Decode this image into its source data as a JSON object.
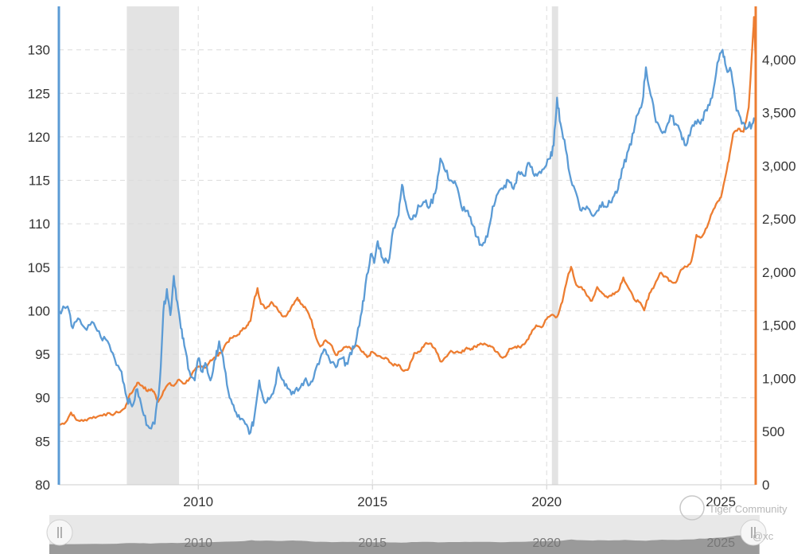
{
  "chart_data": {
    "type": "line",
    "title": "",
    "xlabel": "",
    "x_range": [
      2006.0,
      2026.0
    ],
    "x_ticks": [
      "2010",
      "2015",
      "2020",
      "2025"
    ],
    "left_axis": {
      "label": "",
      "range": [
        80,
        135
      ],
      "ticks": [
        "80",
        "85",
        "90",
        "95",
        "100",
        "105",
        "110",
        "115",
        "120",
        "125",
        "130"
      ],
      "color": "#5b9bd5"
    },
    "right_axis": {
      "label": "",
      "range": [
        0,
        4500
      ],
      "ticks": [
        "0",
        "500",
        "1,000",
        "1,500",
        "2,000",
        "2,500",
        "3,000",
        "3,500",
        "4,000"
      ],
      "color": "#ed7d31"
    },
    "shaded_periods": [
      {
        "start": 2007.95,
        "end": 2009.45
      },
      {
        "start": 2020.15,
        "end": 2020.33
      }
    ],
    "grid": true,
    "legend": "none",
    "series": [
      {
        "axis": "left",
        "color": "#5b9bd5",
        "points": [
          [
            2006.0,
            100.0
          ],
          [
            2006.25,
            100.5
          ],
          [
            2006.4,
            98.0
          ],
          [
            2006.6,
            99.0
          ],
          [
            2006.8,
            97.8
          ],
          [
            2007.0,
            98.6
          ],
          [
            2007.2,
            97.0
          ],
          [
            2007.4,
            96.5
          ],
          [
            2007.6,
            94.5
          ],
          [
            2007.8,
            93.0
          ],
          [
            2007.95,
            90.0
          ],
          [
            2008.1,
            89.0
          ],
          [
            2008.25,
            91.0
          ],
          [
            2008.4,
            88.5
          ],
          [
            2008.55,
            86.8
          ],
          [
            2008.75,
            87.0
          ],
          [
            2008.9,
            92.0
          ],
          [
            2009.0,
            100.0
          ],
          [
            2009.1,
            102.5
          ],
          [
            2009.2,
            99.5
          ],
          [
            2009.3,
            104.0
          ],
          [
            2009.4,
            101.0
          ],
          [
            2009.5,
            98.0
          ],
          [
            2009.6,
            96.0
          ],
          [
            2009.75,
            93.0
          ],
          [
            2009.9,
            92.0
          ],
          [
            2010.0,
            94.5
          ],
          [
            2010.1,
            93.0
          ],
          [
            2010.2,
            94.0
          ],
          [
            2010.35,
            92.0
          ],
          [
            2010.5,
            94.5
          ],
          [
            2010.6,
            96.5
          ],
          [
            2010.75,
            93.5
          ],
          [
            2010.9,
            90.0
          ],
          [
            2011.05,
            88.5
          ],
          [
            2011.2,
            87.5
          ],
          [
            2011.35,
            87.0
          ],
          [
            2011.5,
            86.0
          ],
          [
            2011.6,
            87.5
          ],
          [
            2011.75,
            92.0
          ],
          [
            2011.9,
            89.5
          ],
          [
            2012.0,
            90.0
          ],
          [
            2012.15,
            90.5
          ],
          [
            2012.3,
            93.5
          ],
          [
            2012.45,
            92.0
          ],
          [
            2012.6,
            91.0
          ],
          [
            2012.75,
            90.5
          ],
          [
            2012.9,
            91.0
          ],
          [
            2013.05,
            92.0
          ],
          [
            2013.2,
            91.5
          ],
          [
            2013.35,
            93.0
          ],
          [
            2013.5,
            94.5
          ],
          [
            2013.65,
            95.5
          ],
          [
            2013.8,
            94.0
          ],
          [
            2013.95,
            93.5
          ],
          [
            2014.1,
            94.5
          ],
          [
            2014.25,
            94.0
          ],
          [
            2014.4,
            95.0
          ],
          [
            2014.55,
            97.0
          ],
          [
            2014.7,
            100.0
          ],
          [
            2014.8,
            103.0
          ],
          [
            2014.95,
            106.5
          ],
          [
            2015.05,
            105.5
          ],
          [
            2015.15,
            108.0
          ],
          [
            2015.3,
            106.0
          ],
          [
            2015.45,
            105.5
          ],
          [
            2015.6,
            109.5
          ],
          [
            2015.75,
            111.0
          ],
          [
            2015.85,
            114.5
          ],
          [
            2015.95,
            112.5
          ],
          [
            2016.1,
            110.5
          ],
          [
            2016.2,
            111.0
          ],
          [
            2016.35,
            112.0
          ],
          [
            2016.5,
            112.5
          ],
          [
            2016.65,
            112.0
          ],
          [
            2016.8,
            113.5
          ],
          [
            2016.95,
            117.5
          ],
          [
            2017.1,
            116.0
          ],
          [
            2017.25,
            115.0
          ],
          [
            2017.4,
            114.5
          ],
          [
            2017.55,
            112.0
          ],
          [
            2017.7,
            111.5
          ],
          [
            2017.85,
            110.0
          ],
          [
            2018.0,
            108.5
          ],
          [
            2018.15,
            107.5
          ],
          [
            2018.3,
            108.5
          ],
          [
            2018.45,
            112.0
          ],
          [
            2018.6,
            113.5
          ],
          [
            2018.75,
            114.0
          ],
          [
            2018.9,
            115.0
          ],
          [
            2019.05,
            114.0
          ],
          [
            2019.2,
            116.0
          ],
          [
            2019.35,
            115.5
          ],
          [
            2019.5,
            117.0
          ],
          [
            2019.65,
            115.5
          ],
          [
            2019.8,
            116.0
          ],
          [
            2019.95,
            116.5
          ],
          [
            2020.1,
            117.5
          ],
          [
            2020.2,
            119.0
          ],
          [
            2020.3,
            124.5
          ],
          [
            2020.4,
            121.5
          ],
          [
            2020.55,
            118.5
          ],
          [
            2020.7,
            115.0
          ],
          [
            2020.85,
            113.5
          ],
          [
            2021.0,
            111.5
          ],
          [
            2021.15,
            112.0
          ],
          [
            2021.3,
            111.0
          ],
          [
            2021.45,
            111.5
          ],
          [
            2021.6,
            112.5
          ],
          [
            2021.75,
            112.0
          ],
          [
            2021.9,
            113.0
          ],
          [
            2022.05,
            114.0
          ],
          [
            2022.2,
            116.5
          ],
          [
            2022.35,
            118.5
          ],
          [
            2022.5,
            120.5
          ],
          [
            2022.6,
            122.5
          ],
          [
            2022.75,
            124.0
          ],
          [
            2022.85,
            128.0
          ],
          [
            2022.95,
            125.5
          ],
          [
            2023.1,
            122.5
          ],
          [
            2023.25,
            121.0
          ],
          [
            2023.4,
            120.5
          ],
          [
            2023.55,
            122.5
          ],
          [
            2023.7,
            121.5
          ],
          [
            2023.85,
            120.5
          ],
          [
            2024.0,
            119.0
          ],
          [
            2024.15,
            121.0
          ],
          [
            2024.3,
            121.5
          ],
          [
            2024.45,
            122.0
          ],
          [
            2024.6,
            123.0
          ],
          [
            2024.75,
            124.5
          ],
          [
            2024.9,
            128.5
          ],
          [
            2025.05,
            130.0
          ],
          [
            2025.15,
            128.0
          ],
          [
            2025.3,
            127.5
          ],
          [
            2025.45,
            123.0
          ],
          [
            2025.6,
            121.5
          ],
          [
            2025.75,
            121.0
          ],
          [
            2025.9,
            121.5
          ],
          [
            2026.0,
            122.0
          ]
        ]
      },
      {
        "axis": "right",
        "color": "#ed7d31",
        "points": [
          [
            2006.0,
            560
          ],
          [
            2006.2,
            590
          ],
          [
            2006.35,
            680
          ],
          [
            2006.5,
            610
          ],
          [
            2006.7,
            600
          ],
          [
            2006.9,
            630
          ],
          [
            2007.1,
            640
          ],
          [
            2007.3,
            665
          ],
          [
            2007.5,
            660
          ],
          [
            2007.7,
            680
          ],
          [
            2007.9,
            720
          ],
          [
            2008.0,
            820
          ],
          [
            2008.15,
            900
          ],
          [
            2008.25,
            960
          ],
          [
            2008.4,
            930
          ],
          [
            2008.55,
            880
          ],
          [
            2008.65,
            900
          ],
          [
            2008.75,
            860
          ],
          [
            2008.85,
            780
          ],
          [
            2009.0,
            880
          ],
          [
            2009.15,
            950
          ],
          [
            2009.3,
            930
          ],
          [
            2009.45,
            990
          ],
          [
            2009.6,
            950
          ],
          [
            2009.75,
            1000
          ],
          [
            2009.9,
            1080
          ],
          [
            2010.05,
            1110
          ],
          [
            2010.2,
            1100
          ],
          [
            2010.35,
            1170
          ],
          [
            2010.5,
            1200
          ],
          [
            2010.65,
            1240
          ],
          [
            2010.8,
            1330
          ],
          [
            2010.95,
            1380
          ],
          [
            2011.1,
            1400
          ],
          [
            2011.25,
            1450
          ],
          [
            2011.4,
            1500
          ],
          [
            2011.5,
            1540
          ],
          [
            2011.6,
            1730
          ],
          [
            2011.7,
            1850
          ],
          [
            2011.8,
            1700
          ],
          [
            2011.95,
            1660
          ],
          [
            2012.1,
            1720
          ],
          [
            2012.25,
            1670
          ],
          [
            2012.4,
            1590
          ],
          [
            2012.55,
            1600
          ],
          [
            2012.7,
            1690
          ],
          [
            2012.85,
            1760
          ],
          [
            2012.95,
            1700
          ],
          [
            2013.1,
            1650
          ],
          [
            2013.25,
            1550
          ],
          [
            2013.35,
            1420
          ],
          [
            2013.5,
            1300
          ],
          [
            2013.65,
            1360
          ],
          [
            2013.8,
            1320
          ],
          [
            2013.95,
            1220
          ],
          [
            2014.1,
            1260
          ],
          [
            2014.25,
            1300
          ],
          [
            2014.4,
            1270
          ],
          [
            2014.55,
            1310
          ],
          [
            2014.7,
            1250
          ],
          [
            2014.85,
            1200
          ],
          [
            2015.0,
            1250
          ],
          [
            2015.15,
            1210
          ],
          [
            2015.3,
            1190
          ],
          [
            2015.45,
            1180
          ],
          [
            2015.6,
            1120
          ],
          [
            2015.75,
            1130
          ],
          [
            2015.9,
            1070
          ],
          [
            2016.05,
            1100
          ],
          [
            2016.2,
            1240
          ],
          [
            2016.35,
            1250
          ],
          [
            2016.5,
            1320
          ],
          [
            2016.65,
            1330
          ],
          [
            2016.8,
            1280
          ],
          [
            2016.95,
            1160
          ],
          [
            2017.1,
            1200
          ],
          [
            2017.25,
            1260
          ],
          [
            2017.4,
            1250
          ],
          [
            2017.55,
            1240
          ],
          [
            2017.7,
            1290
          ],
          [
            2017.85,
            1280
          ],
          [
            2017.95,
            1300
          ],
          [
            2018.1,
            1330
          ],
          [
            2018.25,
            1320
          ],
          [
            2018.4,
            1300
          ],
          [
            2018.55,
            1250
          ],
          [
            2018.7,
            1200
          ],
          [
            2018.85,
            1220
          ],
          [
            2018.95,
            1280
          ],
          [
            2019.1,
            1300
          ],
          [
            2019.25,
            1290
          ],
          [
            2019.4,
            1340
          ],
          [
            2019.55,
            1420
          ],
          [
            2019.7,
            1500
          ],
          [
            2019.85,
            1480
          ],
          [
            2020.0,
            1560
          ],
          [
            2020.15,
            1600
          ],
          [
            2020.3,
            1580
          ],
          [
            2020.45,
            1720
          ],
          [
            2020.6,
            1950
          ],
          [
            2020.7,
            2050
          ],
          [
            2020.85,
            1880
          ],
          [
            2021.0,
            1860
          ],
          [
            2021.15,
            1780
          ],
          [
            2021.3,
            1730
          ],
          [
            2021.45,
            1860
          ],
          [
            2021.6,
            1800
          ],
          [
            2021.75,
            1760
          ],
          [
            2021.9,
            1800
          ],
          [
            2022.05,
            1820
          ],
          [
            2022.2,
            1950
          ],
          [
            2022.35,
            1850
          ],
          [
            2022.5,
            1750
          ],
          [
            2022.65,
            1720
          ],
          [
            2022.8,
            1640
          ],
          [
            2022.95,
            1800
          ],
          [
            2023.1,
            1880
          ],
          [
            2023.25,
            1990
          ],
          [
            2023.4,
            1960
          ],
          [
            2023.55,
            1920
          ],
          [
            2023.7,
            1900
          ],
          [
            2023.85,
            2020
          ],
          [
            2024.0,
            2050
          ],
          [
            2024.15,
            2100
          ],
          [
            2024.3,
            2350
          ],
          [
            2024.45,
            2330
          ],
          [
            2024.6,
            2420
          ],
          [
            2024.75,
            2560
          ],
          [
            2024.9,
            2660
          ],
          [
            2025.0,
            2700
          ],
          [
            2025.15,
            2930
          ],
          [
            2025.25,
            3100
          ],
          [
            2025.35,
            3300
          ],
          [
            2025.5,
            3350
          ],
          [
            2025.65,
            3320
          ],
          [
            2025.8,
            3550
          ],
          [
            2025.9,
            4100
          ],
          [
            2025.95,
            4400
          ],
          [
            2025.99,
            4050
          ]
        ]
      }
    ]
  },
  "navigator": {
    "ticks": [
      "2010",
      "2015",
      "2020",
      "2025"
    ]
  },
  "watermark": {
    "line1": "Tiger Community",
    "line2": "@xc"
  }
}
